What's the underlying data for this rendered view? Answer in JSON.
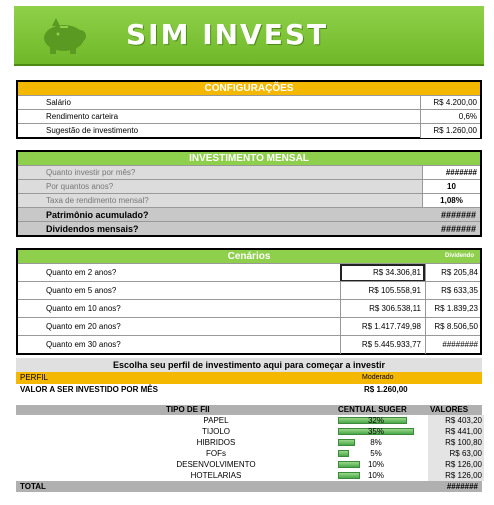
{
  "app": {
    "title": "SIM INVEST"
  },
  "config": {
    "header": "CONFIGURAÇÕES",
    "rows": [
      {
        "label": "Salário",
        "value": "R$ 4.200,00"
      },
      {
        "label": "Rendimento carteira",
        "value": "0,6%"
      },
      {
        "label": "Sugestão de investimento",
        "value": "R$ 1.260,00"
      }
    ]
  },
  "invest": {
    "header": "INVESTIMENTO MENSAL",
    "rows": [
      {
        "label": "Quanto investir por mês?",
        "value": "#######"
      },
      {
        "label": "Por quantos anos?",
        "value": "10"
      },
      {
        "label": "Taxa de rendimento mensal?",
        "value": "1,08%"
      },
      {
        "label": "Patrimônio acumulado?",
        "value": "#######"
      },
      {
        "label": "Dividendos mensais?",
        "value": "#######"
      }
    ]
  },
  "cenarios": {
    "header": "Cenários",
    "col2_header": "Dividendo",
    "rows": [
      {
        "label": "Quanto em 2 anos?",
        "v1": "R$ 34.306,81",
        "v2": "R$ 205,84"
      },
      {
        "label": "Quanto em 5 anos?",
        "v1": "R$ 105.558,91",
        "v2": "R$ 633,35"
      },
      {
        "label": "Quanto em 10 anos?",
        "v1": "R$ 306.538,11",
        "v2": "R$ 1.839,23"
      },
      {
        "label": "Quanto em 20 anos?",
        "v1": "R$ 1.417.749,98",
        "v2": "R$ 8.506,50"
      },
      {
        "label": "Quanto em 30 anos?",
        "v1": "R$ 5.445.933,77",
        "v2": "########"
      }
    ]
  },
  "perfil": {
    "prompt": "Escolha seu perfil de investimento aqui para começar a investir",
    "label": "PERFIL",
    "value": "Moderado",
    "total_label": "VALOR A SER INVESTIDO POR MÊS",
    "total_value": "R$ 1.260,00"
  },
  "fii": {
    "col_tipo": "TIPO DE FII",
    "col_pct": "CENTUAL SUGER",
    "col_val": "VALORES",
    "rows": [
      {
        "name": "PAPEL",
        "pct": "32%",
        "pct_value": 32,
        "valor": "R$ 403,20"
      },
      {
        "name": "TIJOLO",
        "pct": "35%",
        "pct_value": 35,
        "valor": "R$ 441,00"
      },
      {
        "name": "HIBRIDOS",
        "pct": "8%",
        "pct_value": 8,
        "valor": "R$ 100,80"
      },
      {
        "name": "FOFs",
        "pct": "5%",
        "pct_value": 5,
        "valor": "R$ 63,00"
      },
      {
        "name": "DESENVOLVIMENTO",
        "pct": "10%",
        "pct_value": 10,
        "valor": "R$ 126,00"
      },
      {
        "name": "HOTELARIAS",
        "pct": "10%",
        "pct_value": 10,
        "valor": "R$ 126,00"
      }
    ],
    "total_label": "TOTAL",
    "total_value": "#######"
  },
  "colors": {
    "green": "#8ecf4b",
    "orange": "#f5b800"
  }
}
